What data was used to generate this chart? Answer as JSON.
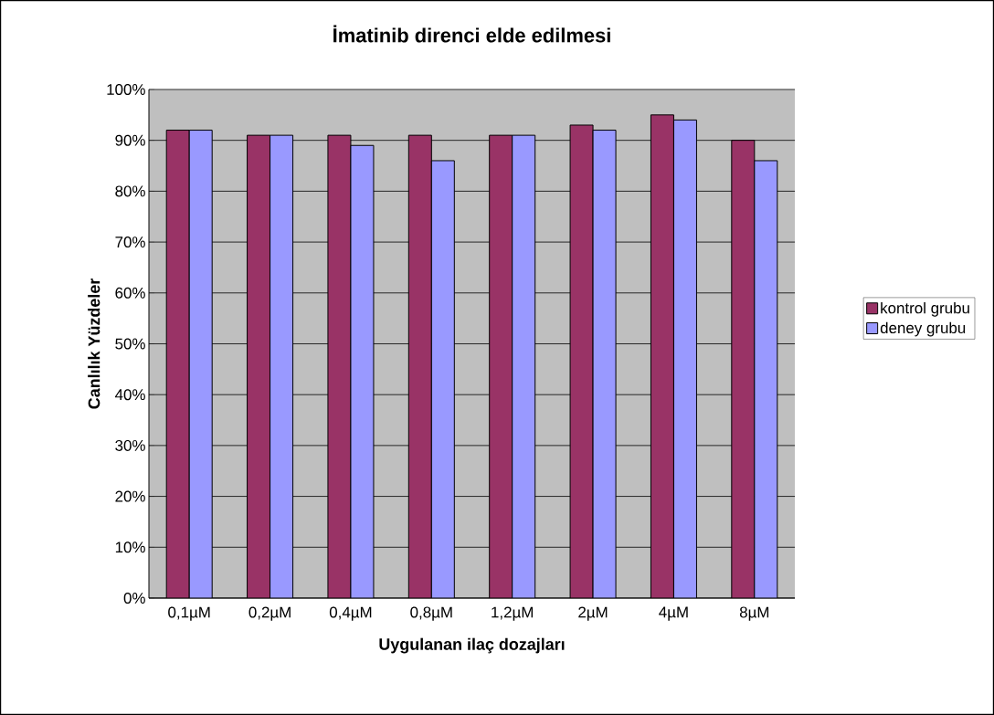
{
  "chart_data": {
    "type": "bar",
    "title": "İmatinib direnci elde edilmesi",
    "xlabel": "Uygulanan ilaç dozajları",
    "ylabel": "Canlılık Yüzdeler",
    "categories": [
      "0,1µM",
      "0,2µM",
      "0,4µM",
      "0,8µM",
      "1,2µM",
      "2µM",
      "4µM",
      "8µM"
    ],
    "series": [
      {
        "name": "kontrol grubu",
        "color": "#993366",
        "values": [
          92,
          91,
          91,
          91,
          91,
          93,
          95,
          90
        ]
      },
      {
        "name": "deney grubu",
        "color": "#9999ff",
        "values": [
          92,
          91,
          89,
          86,
          91,
          92,
          94,
          86
        ]
      }
    ],
    "ylim": [
      0,
      100
    ],
    "yticks": [
      {
        "value": 0,
        "label": "0%"
      },
      {
        "value": 10,
        "label": "10%"
      },
      {
        "value": 20,
        "label": "20%"
      },
      {
        "value": 30,
        "label": "30%"
      },
      {
        "value": 40,
        "label": "40%"
      },
      {
        "value": 50,
        "label": "50%"
      },
      {
        "value": 60,
        "label": "60%"
      },
      {
        "value": 70,
        "label": "70%"
      },
      {
        "value": 80,
        "label": "80%"
      },
      {
        "value": 90,
        "label": "90%"
      },
      {
        "value": 100,
        "label": "100%"
      }
    ],
    "grid": "y",
    "legend": "right"
  }
}
